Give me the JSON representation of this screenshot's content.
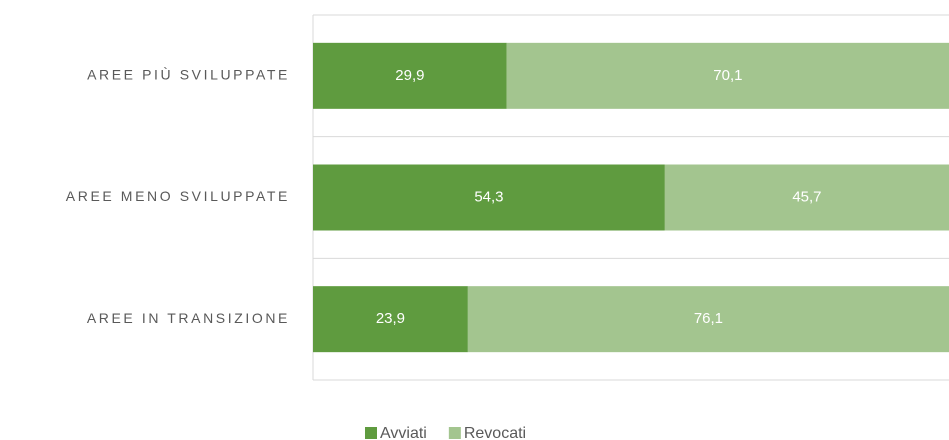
{
  "chart_data": {
    "type": "stacked-barh",
    "categories": [
      "AREE PIÙ SVILUPPATE",
      "AREE MENO SVILUPPATE",
      "AREE IN TRANSIZIONE"
    ],
    "series": [
      {
        "name": "Avviati",
        "color": "#5f9b3f",
        "values": [
          29.9,
          54.3,
          23.9
        ],
        "value_labels": [
          "29,9",
          "54,3",
          "23,9"
        ]
      },
      {
        "name": "Revocati",
        "color": "#a3c58f",
        "values": [
          70.1,
          45.7,
          76.1
        ],
        "value_labels": [
          "70,1",
          "45,7",
          "76,1"
        ]
      }
    ],
    "xlim": [
      0,
      100
    ],
    "grid": true,
    "legend": "bottom"
  }
}
